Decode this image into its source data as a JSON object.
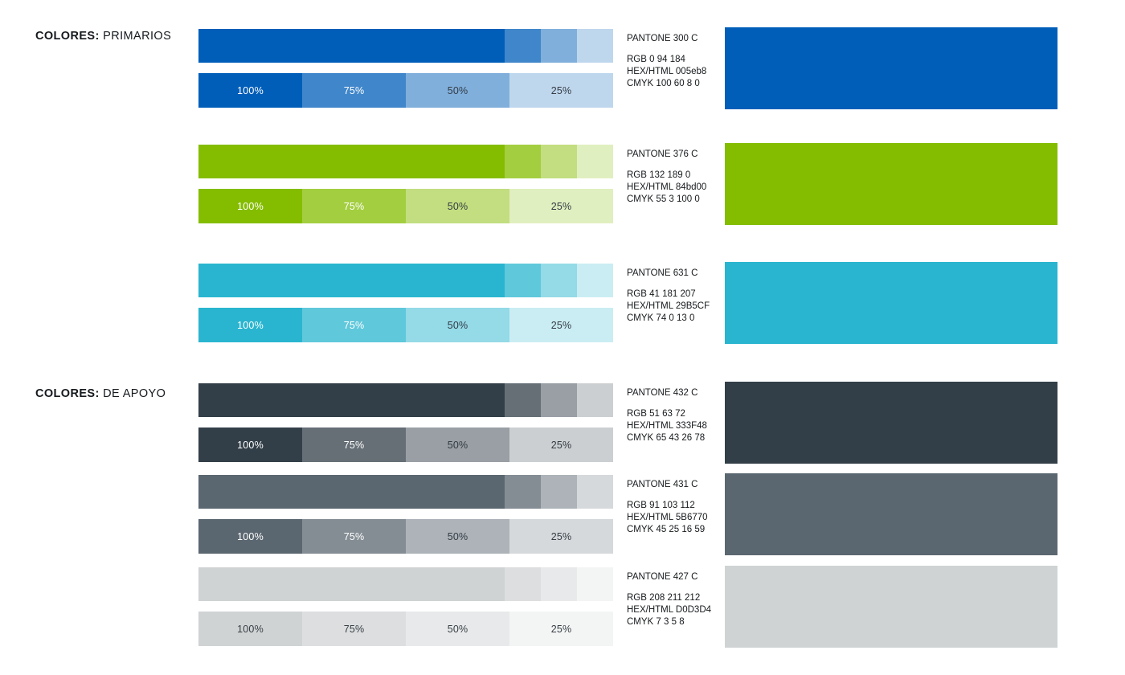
{
  "page": {
    "background": "#FFFFFF"
  },
  "sections": [
    {
      "label_bold": "COLORES:",
      "label_rest": " PRIMARIOS"
    },
    {
      "label_bold": "COLORES:",
      "label_rest": " DE APOYO"
    }
  ],
  "groups": [
    {
      "pantone": "PANTONE 300 C",
      "rgb": "RGB 0 94 184",
      "hex_html": "HEX/HTML 005eb8",
      "cmyk": "CMYK 100 60 8 0",
      "color": "#005EB8",
      "tints": [
        {
          "label": "100%",
          "color": "#005EB8",
          "label_color": "#FFFFFF"
        },
        {
          "label": "75%",
          "color": "#4086CA",
          "label_color": "#FFFFFF"
        },
        {
          "label": "50%",
          "color": "#80AFDC",
          "label_color": "#333B44"
        },
        {
          "label": "25%",
          "color": "#BFD7ED",
          "label_color": "#333B44"
        }
      ]
    },
    {
      "pantone": "PANTONE 376 C",
      "rgb": "RGB 132 189 0",
      "hex_html": "HEX/HTML 84bd00",
      "cmyk": "CMYK 55 3 100 0",
      "color": "#84BD00",
      "tints": [
        {
          "label": "100%",
          "color": "#84BD00",
          "label_color": "#FFFFFF"
        },
        {
          "label": "75%",
          "color": "#A3CE40",
          "label_color": "#FFFFFF"
        },
        {
          "label": "50%",
          "color": "#C2DE80",
          "label_color": "#333B44"
        },
        {
          "label": "25%",
          "color": "#E0EFBF",
          "label_color": "#333B44"
        }
      ]
    },
    {
      "pantone": "PANTONE 631 C",
      "rgb": "RGB 41 181 207",
      "hex_html": "HEX/HTML 29B5CF",
      "cmyk": "CMYK 74 0 13 0",
      "color": "#29B5CF",
      "tints": [
        {
          "label": "100%",
          "color": "#29B5CF",
          "label_color": "#FFFFFF"
        },
        {
          "label": "75%",
          "color": "#5FC8DB",
          "label_color": "#FFFFFF"
        },
        {
          "label": "50%",
          "color": "#94DAE7",
          "label_color": "#333B44"
        },
        {
          "label": "25%",
          "color": "#CAEDF3",
          "label_color": "#333B44"
        }
      ]
    },
    {
      "pantone": "PANTONE 432 C",
      "rgb": "RGB 51 63 72",
      "hex_html": "HEX/HTML 333F48",
      "cmyk": "CMYK 65 43 26 78",
      "color": "#333F48",
      "tints": [
        {
          "label": "100%",
          "color": "#333F48",
          "label_color": "#FFFFFF"
        },
        {
          "label": "75%",
          "color": "#666F76",
          "label_color": "#FFFFFF"
        },
        {
          "label": "50%",
          "color": "#999FA4",
          "label_color": "#333B44"
        },
        {
          "label": "25%",
          "color": "#CCCFD1",
          "label_color": "#333B44"
        }
      ]
    },
    {
      "pantone": "PANTONE 431 C",
      "rgb": "RGB 91 103 112",
      "hex_html": "HEX/HTML 5B6770",
      "cmyk": "CMYK 45 25 16 59",
      "color": "#5B6770",
      "tints": [
        {
          "label": "100%",
          "color": "#5B6770",
          "label_color": "#FFFFFF"
        },
        {
          "label": "75%",
          "color": "#848D94",
          "label_color": "#FFFFFF"
        },
        {
          "label": "50%",
          "color": "#ADB3B8",
          "label_color": "#333B44"
        },
        {
          "label": "25%",
          "color": "#D6D9DB",
          "label_color": "#333B44"
        }
      ]
    },
    {
      "pantone": "PANTONE 427 C",
      "rgb": "RGB 208 211 212",
      "hex_html": "HEX/HTML D0D3D4",
      "cmyk": "CMYK 7 3 5 8",
      "color": "#D0D3D4",
      "tints": [
        {
          "label": "100%",
          "color": "#D0D3D4",
          "label_color": "#383F45"
        },
        {
          "label": "75%",
          "color": "#DCDEDF",
          "label_color": "#383F45"
        },
        {
          "label": "50%",
          "color": "#E8E9EA",
          "label_color": "#383F45"
        },
        {
          "label": "25%",
          "color": "#F3F4F4",
          "label_color": "#383F45"
        }
      ]
    }
  ]
}
